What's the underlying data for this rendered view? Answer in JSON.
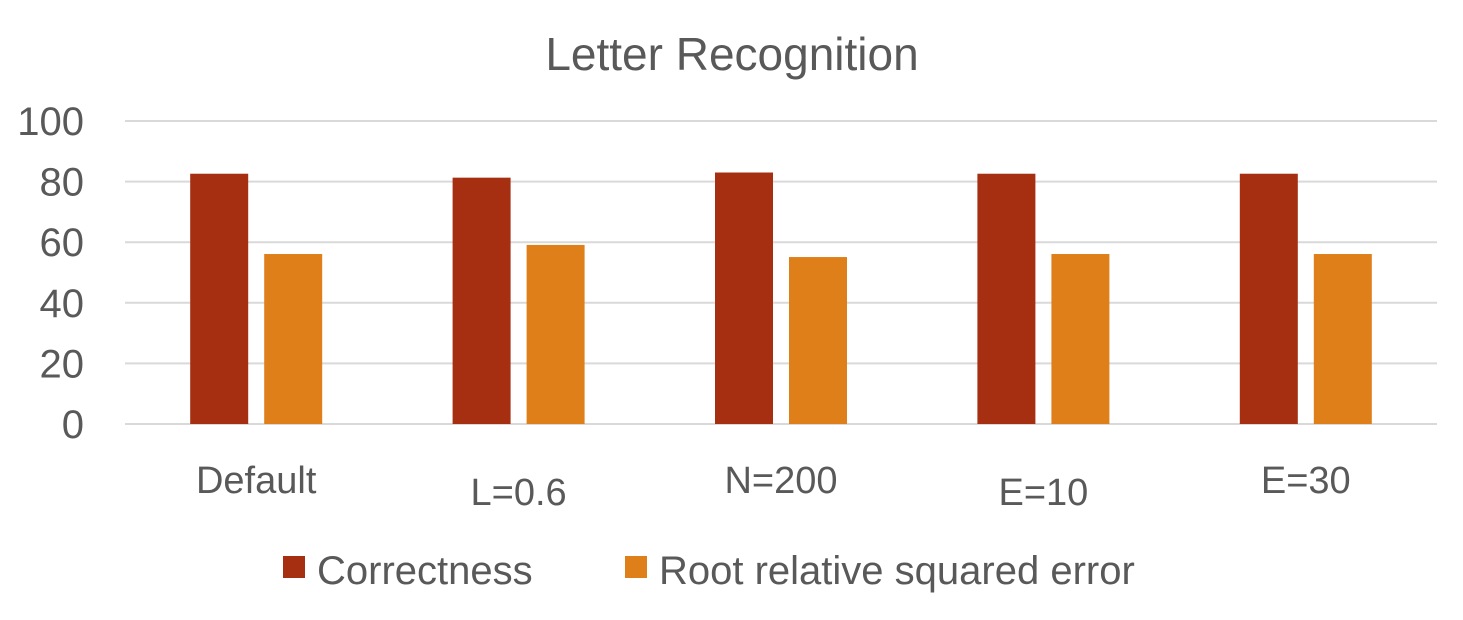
{
  "chart_data": {
    "type": "bar",
    "title": "Letter Recognition",
    "categories": [
      "Default",
      "L=0.6",
      "N=200",
      "E=10",
      "E=30"
    ],
    "series": [
      {
        "name": "Correctness",
        "color": "#a52f10",
        "values": [
          82.6,
          81.3,
          83.0,
          82.6,
          82.6
        ]
      },
      {
        "name": "Root relative squared error",
        "color": "#de7f1a",
        "values": [
          56.1,
          59.1,
          55.1,
          56.1,
          56.1
        ]
      }
    ],
    "ylim": [
      0,
      100
    ],
    "yticks": [
      0,
      20,
      40,
      60,
      80,
      100
    ],
    "xlabel": "",
    "ylabel": "",
    "grid": true,
    "legend_position": "bottom"
  }
}
